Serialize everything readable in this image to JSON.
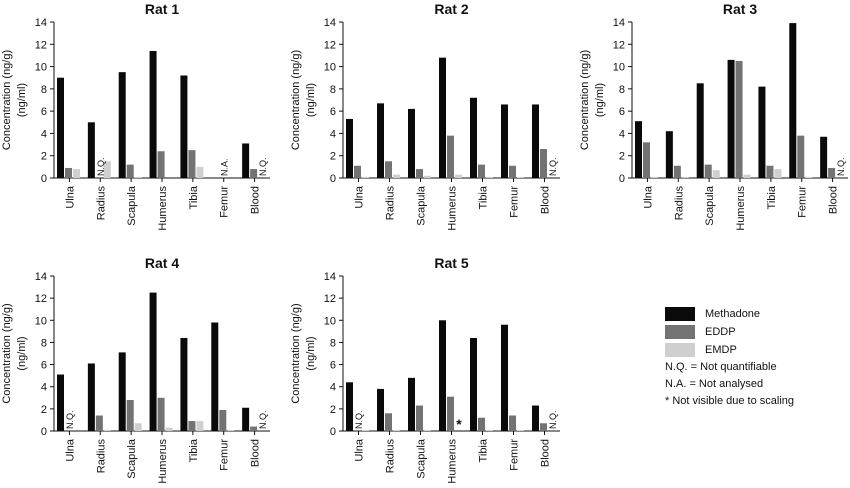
{
  "colors": {
    "Methadone": "#0a0a0a",
    "EDDP": "#737373",
    "EMDP": "#cfcfcf"
  },
  "legend": {
    "series": [
      {
        "name": "Methadone",
        "color": "#0a0a0a"
      },
      {
        "name": "EDDP",
        "color": "#737373"
      },
      {
        "name": "EMDP",
        "color": "#cfcfcf"
      }
    ],
    "notes": [
      "N.Q. = Not quantifiable",
      "N.A. = Not analysed",
      "* Not visible due to scaling"
    ]
  },
  "chart_data": [
    {
      "type": "bar",
      "title": "Rat 1",
      "ylabel": "Concentration (ng/g)\n(ng/ml)",
      "ylim": [
        0,
        14
      ],
      "yticks": [
        0,
        2,
        4,
        6,
        8,
        10,
        12,
        14
      ],
      "categories": [
        "Ulna",
        "Radius",
        "Scapula",
        "Humerus",
        "Tibia",
        "Femur",
        "Blood"
      ],
      "series": [
        {
          "name": "Methadone",
          "values": [
            9.0,
            5.0,
            9.5,
            11.4,
            9.2,
            null,
            3.1
          ]
        },
        {
          "name": "EDDP",
          "values": [
            0.9,
            null,
            1.2,
            2.4,
            2.5,
            null,
            0.8
          ]
        },
        {
          "name": "EMDP",
          "values": [
            0.8,
            1.5,
            0.1,
            null,
            1.0,
            null,
            null
          ]
        }
      ],
      "annotations": [
        {
          "category": "Radius",
          "series": "EDDP",
          "text": "N.Q."
        },
        {
          "category": "Femur",
          "series": "EDDP",
          "text": "N.A."
        },
        {
          "category": "Blood",
          "series": "EMDP",
          "text": "N.Q."
        }
      ]
    },
    {
      "type": "bar",
      "title": "Rat 2",
      "ylabel": "Concentration (ng/g)\n(ng/ml)",
      "ylim": [
        0,
        14
      ],
      "yticks": [
        0,
        2,
        4,
        6,
        8,
        10,
        12,
        14
      ],
      "categories": [
        "Ulna",
        "Radius",
        "Scapula",
        "Humerus",
        "Tibia",
        "Femur",
        "Blood"
      ],
      "series": [
        {
          "name": "Methadone",
          "values": [
            5.3,
            6.7,
            6.2,
            10.8,
            7.2,
            6.6,
            6.6
          ]
        },
        {
          "name": "EDDP",
          "values": [
            1.1,
            1.5,
            0.8,
            3.8,
            1.2,
            1.1,
            2.6
          ]
        },
        {
          "name": "EMDP",
          "values": [
            0.1,
            0.3,
            0.2,
            0.3,
            0.1,
            0.1,
            null
          ]
        }
      ],
      "annotations": [
        {
          "category": "Blood",
          "series": "EMDP",
          "text": "N.Q."
        }
      ]
    },
    {
      "type": "bar",
      "title": "Rat 3",
      "ylabel": "Concentration (ng/g)\n(ng/ml)",
      "ylim": [
        0,
        14
      ],
      "yticks": [
        0,
        2,
        4,
        6,
        8,
        10,
        12,
        14
      ],
      "categories": [
        "Ulna",
        "Radius",
        "Scapula",
        "Humerus",
        "Tibia",
        "Femur",
        "Blood"
      ],
      "series": [
        {
          "name": "Methadone",
          "values": [
            5.1,
            4.2,
            8.5,
            10.6,
            8.2,
            13.9,
            3.7
          ]
        },
        {
          "name": "EDDP",
          "values": [
            3.2,
            1.1,
            1.2,
            10.5,
            1.1,
            3.8,
            0.9
          ]
        },
        {
          "name": "EMDP",
          "values": [
            0.1,
            0.1,
            0.7,
            0.3,
            0.8,
            0.1,
            null
          ]
        }
      ],
      "annotations": [
        {
          "category": "Blood",
          "series": "EMDP",
          "text": "N.Q."
        }
      ]
    },
    {
      "type": "bar",
      "title": "Rat 4",
      "ylabel": "Concentration (ng/g)\n(ng/ml)",
      "ylim": [
        0,
        14
      ],
      "yticks": [
        0,
        2,
        4,
        6,
        8,
        10,
        12,
        14
      ],
      "categories": [
        "Ulna",
        "Radius",
        "Scapula",
        "Humerus",
        "Tibia",
        "Femur",
        "Blood"
      ],
      "series": [
        {
          "name": "Methadone",
          "values": [
            5.1,
            6.1,
            7.1,
            12.5,
            8.4,
            9.8,
            2.1
          ]
        },
        {
          "name": "EDDP",
          "values": [
            null,
            1.4,
            2.8,
            3.0,
            0.9,
            1.9,
            0.4
          ]
        },
        {
          "name": "EMDP",
          "values": [
            null,
            0.1,
            0.7,
            0.3,
            0.9,
            0.1,
            null
          ]
        }
      ],
      "annotations": [
        {
          "category": "Ulna",
          "series": "EDDP",
          "text": "N.Q."
        },
        {
          "category": "Blood",
          "series": "EMDP",
          "text": "N.Q."
        }
      ]
    },
    {
      "type": "bar",
      "title": "Rat 5",
      "ylabel": "Concentration (ng/g)\n(ng/ml)",
      "ylim": [
        0,
        14
      ],
      "yticks": [
        0,
        2,
        4,
        6,
        8,
        10,
        12,
        14
      ],
      "categories": [
        "Ulna",
        "Radius",
        "Scapula",
        "Humerus",
        "Tibia",
        "Femur",
        "Blood"
      ],
      "series": [
        {
          "name": "Methadone",
          "values": [
            4.4,
            3.8,
            4.8,
            10.0,
            8.4,
            9.6,
            2.3
          ]
        },
        {
          "name": "EDDP",
          "values": [
            null,
            1.6,
            2.3,
            3.1,
            1.2,
            1.4,
            0.7
          ]
        },
        {
          "name": "EMDP",
          "values": [
            0.1,
            0.1,
            0.1,
            null,
            0.1,
            0.1,
            null
          ]
        }
      ],
      "annotations": [
        {
          "category": "Ulna",
          "series": "EDDP",
          "text": "N.Q."
        },
        {
          "category": "Humerus",
          "series": "EMDP",
          "text": "*"
        },
        {
          "category": "Blood",
          "series": "EMDP",
          "text": "N.Q."
        }
      ]
    }
  ]
}
